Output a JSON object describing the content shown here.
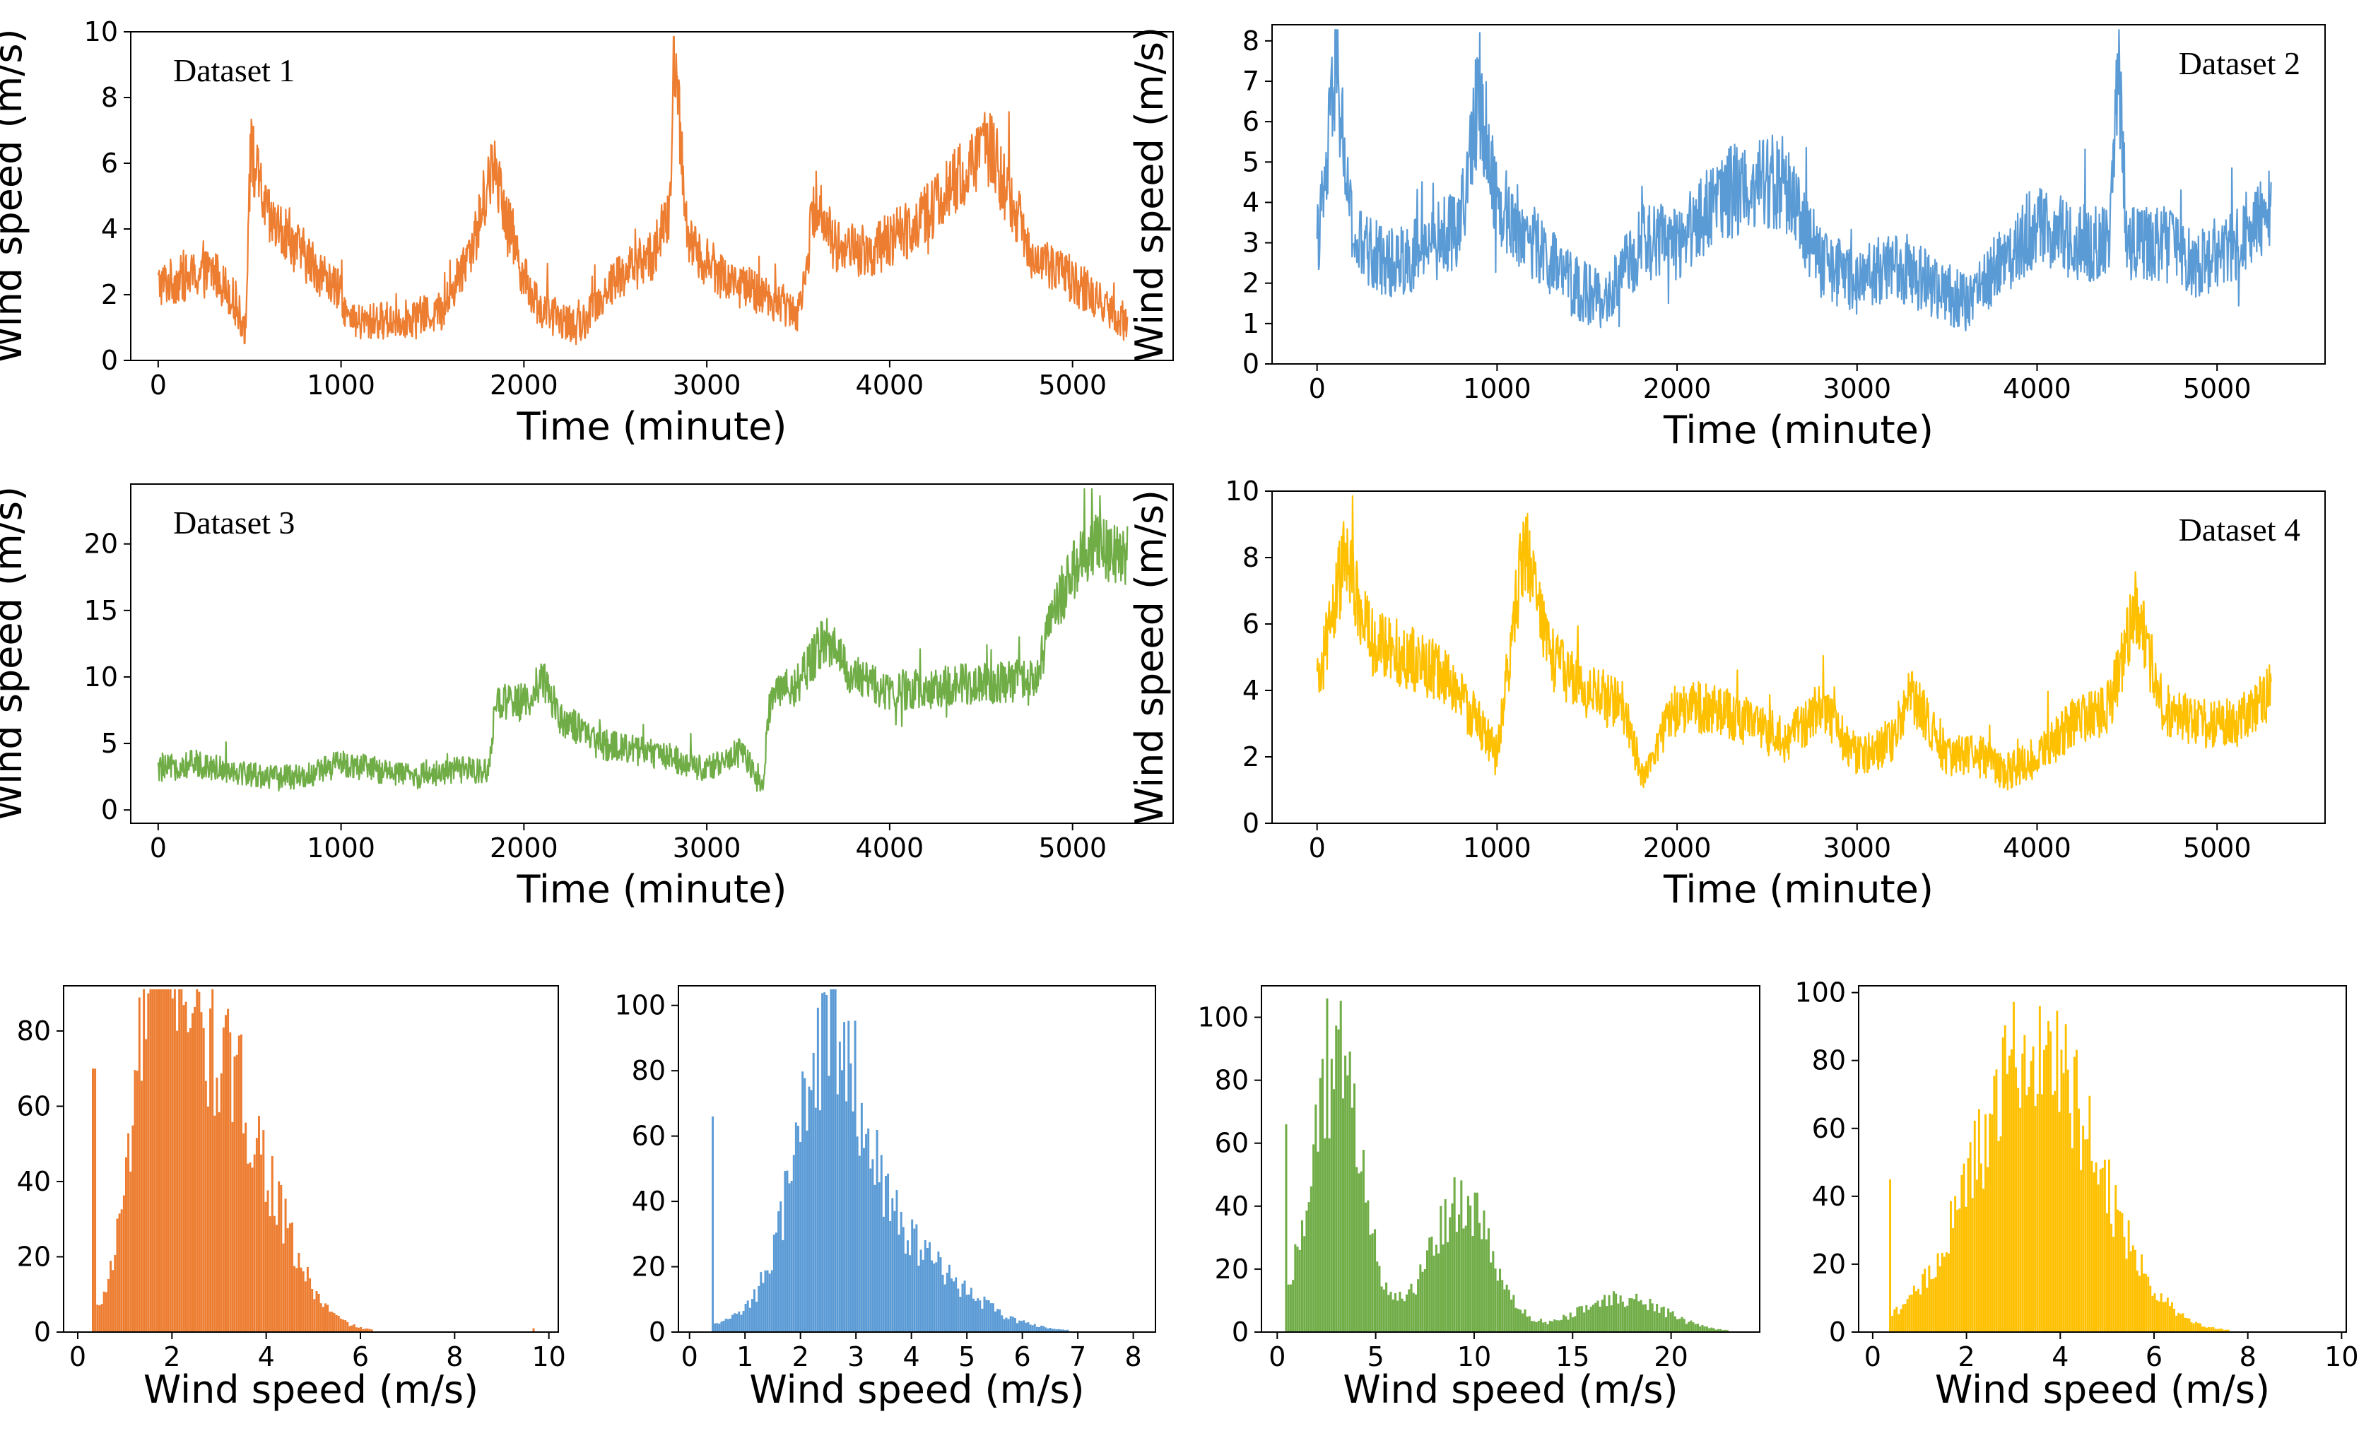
{
  "figure": {
    "description_free": true
  },
  "chart_data": [
    {
      "id": "ts1",
      "type": "line",
      "label": "Dataset 1",
      "color": "#ED7D31",
      "xlabel": "Time (minute)",
      "ylabel": "Wind speed (m/s)",
      "xlim": [
        -150,
        5550
      ],
      "ylim": [
        0,
        10
      ],
      "xticks": [
        0,
        1000,
        2000,
        3000,
        4000,
        5000
      ],
      "yticks": [
        0,
        2,
        4,
        6,
        8,
        10
      ],
      "x": [
        0,
        300,
        400,
        480,
        500,
        600,
        800,
        1000,
        1050,
        1200,
        1400,
        1550,
        1600,
        1750,
        1800,
        1850,
        1900,
        2000,
        2100,
        2300,
        2500,
        2700,
        2800,
        2820,
        2900,
        3100,
        3300,
        3500,
        3600,
        3700,
        3900,
        4100,
        4300,
        4500,
        4550,
        4650,
        4800,
        5000,
        5200,
        5300
      ],
      "y": [
        2.3,
        2.7,
        2.0,
        0.9,
        6.5,
        4.3,
        3.2,
        2.0,
        1.1,
        1.2,
        1.3,
        1.5,
        2.0,
        4.0,
        5.5,
        5.8,
        4.6,
        2.5,
        1.5,
        1.0,
        2.5,
        3.2,
        4.5,
        9.6,
        3.5,
        2.5,
        2.0,
        1.5,
        5.0,
        3.5,
        3.3,
        4.0,
        5.0,
        6.3,
        6.5,
        5.0,
        3.0,
        2.5,
        1.5,
        1.0
      ],
      "noise": 1.1
    },
    {
      "id": "ts2",
      "type": "line",
      "label": "Dataset 2",
      "color": "#5B9BD5",
      "xlabel": "Time (minute)",
      "ylabel": "Wind speed (m/s)",
      "xlim": [
        -250,
        5600
      ],
      "ylim": [
        0,
        8.4
      ],
      "xticks": [
        0,
        1000,
        2000,
        3000,
        4000,
        5000
      ],
      "yticks": [
        0,
        1,
        2,
        3,
        4,
        5,
        6,
        7,
        8
      ],
      "x": [
        0,
        50,
        100,
        200,
        400,
        600,
        800,
        900,
        1000,
        1200,
        1400,
        1600,
        1800,
        2000,
        2200,
        2400,
        2600,
        2800,
        3000,
        3200,
        3400,
        3600,
        3800,
        4000,
        4200,
        4400,
        4450,
        4500,
        4700,
        4900,
        5100,
        5300
      ],
      "y": [
        3.0,
        4.5,
        7.5,
        3.0,
        2.5,
        2.8,
        3.5,
        6.8,
        4.0,
        3.0,
        2.0,
        1.5,
        3.0,
        3.0,
        4.0,
        4.5,
        4.5,
        2.5,
        2.0,
        2.5,
        2.0,
        1.5,
        2.5,
        3.5,
        3.0,
        3.0,
        7.5,
        3.0,
        3.0,
        2.5,
        3.0,
        4.0
      ],
      "noise": 1.2
    },
    {
      "id": "ts3",
      "type": "line",
      "label": "Dataset 3",
      "color": "#70AD47",
      "xlabel": "Time (minute)",
      "ylabel": "Wind speed (m/s)",
      "xlim": [
        -150,
        5550
      ],
      "ylim": [
        -1,
        24.5
      ],
      "xticks": [
        0,
        1000,
        2000,
        3000,
        4000,
        5000
      ],
      "yticks": [
        0,
        5,
        10,
        15,
        20
      ],
      "x": [
        0,
        200,
        400,
        600,
        800,
        1000,
        1200,
        1400,
        1600,
        1800,
        1850,
        2000,
        2100,
        2200,
        2400,
        2600,
        2800,
        3000,
        3200,
        3300,
        3350,
        3500,
        3650,
        3800,
        4000,
        4200,
        4400,
        4600,
        4800,
        4900,
        5000,
        5100,
        5300
      ],
      "y": [
        3.0,
        3.5,
        3.0,
        2.5,
        2.5,
        3.5,
        3.0,
        2.5,
        3.0,
        3.0,
        8.0,
        8.0,
        10.0,
        7.0,
        5.0,
        4.5,
        4.0,
        3.0,
        4.5,
        1.5,
        8.5,
        9.5,
        13.0,
        10.0,
        9.0,
        9.0,
        9.5,
        9.5,
        10.0,
        15.0,
        18.0,
        20.0,
        19.0
      ],
      "noise": 1.8
    },
    {
      "id": "ts4",
      "type": "line",
      "label": "Dataset 4",
      "color": "#FFC000",
      "xlabel": "Time (minute)",
      "ylabel": "Wind speed (m/s)",
      "xlim": [
        -250,
        5600
      ],
      "ylim": [
        0,
        10
      ],
      "xticks": [
        0,
        1000,
        2000,
        3000,
        4000,
        5000
      ],
      "yticks": [
        0,
        2,
        4,
        6,
        8,
        10
      ],
      "x": [
        0,
        150,
        300,
        500,
        700,
        900,
        1000,
        1150,
        1300,
        1500,
        1700,
        1800,
        2000,
        2200,
        2400,
        2600,
        2800,
        3000,
        3200,
        3300,
        3500,
        3700,
        3800,
        4000,
        4200,
        4400,
        4550,
        4700,
        4900,
        5100,
        5300
      ],
      "y": [
        4.0,
        8.0,
        5.5,
        5.0,
        4.5,
        3.0,
        2.0,
        8.5,
        5.0,
        4.0,
        3.5,
        1.5,
        3.5,
        3.5,
        3.0,
        2.5,
        3.5,
        2.0,
        2.5,
        4.0,
        2.0,
        2.0,
        1.5,
        2.0,
        3.0,
        3.5,
        6.5,
        3.5,
        3.0,
        3.0,
        4.0
      ],
      "noise": 1.0
    },
    {
      "id": "h1",
      "type": "bar",
      "color": "#ED7D31",
      "xlabel": "Wind speed (m/s)",
      "ylabel": "",
      "xlim": [
        -0.3,
        10.2
      ],
      "ylim": [
        0,
        92
      ],
      "xticks": [
        0,
        2,
        4,
        6,
        8,
        10
      ],
      "yticks": [
        0,
        20,
        40,
        60,
        80
      ],
      "bins": [
        0.3,
        9.7
      ],
      "nbins": 200,
      "components": [
        {
          "w": 78,
          "mu": 1.7,
          "sd": 0.5
        },
        {
          "w": 72,
          "mu": 3.0,
          "sd": 1.05
        }
      ],
      "spikes": [
        {
          "x": 0.35,
          "v": 70
        },
        {
          "x": 9.7,
          "v": 1
        }
      ],
      "peak_bin": {
        "x": 1.5,
        "v": 90
      }
    },
    {
      "id": "h2",
      "type": "bar",
      "color": "#5B9BD5",
      "xlabel": "Wind speed (m/s)",
      "ylabel": "",
      "xlim": [
        -0.2,
        8.4
      ],
      "ylim": [
        0,
        106
      ],
      "xticks": [
        0,
        1,
        2,
        3,
        4,
        5,
        6,
        7,
        8
      ],
      "yticks": [
        0,
        20,
        40,
        60,
        80,
        100
      ],
      "bins": [
        0.4,
        8.3
      ],
      "nbins": 200,
      "components": [
        {
          "w": 70,
          "mu": 2.5,
          "sd": 0.55
        },
        {
          "w": 33,
          "mu": 3.3,
          "sd": 1.25
        }
      ],
      "spikes": [
        {
          "x": 0.42,
          "v": 66
        }
      ],
      "peak_bin": {
        "x": 2.45,
        "v": 104
      }
    },
    {
      "id": "h3",
      "type": "bar",
      "color": "#70AD47",
      "xlabel": "Wind speed (m/s)",
      "ylabel": "",
      "xlim": [
        -0.8,
        24.5
      ],
      "ylim": [
        0,
        110
      ],
      "xticks": [
        0,
        5,
        10,
        15,
        20
      ],
      "yticks": [
        0,
        20,
        40,
        60,
        80,
        100
      ],
      "bins": [
        0.4,
        23.5
      ],
      "nbins": 200,
      "components": [
        {
          "w": 88,
          "mu": 3.0,
          "sd": 1.3
        },
        {
          "w": 42,
          "mu": 9.3,
          "sd": 1.6
        },
        {
          "w": 11,
          "mu": 17.5,
          "sd": 2.2
        }
      ],
      "spikes": [
        {
          "x": 0.45,
          "v": 66
        }
      ],
      "peak_bin": {
        "x": 2.5,
        "v": 106
      }
    },
    {
      "id": "h4",
      "type": "bar",
      "color": "#FFC000",
      "xlabel": "Wind speed (m/s)",
      "ylabel": "",
      "xlim": [
        -0.3,
        10.1
      ],
      "ylim": [
        0,
        102
      ],
      "xticks": [
        0,
        2,
        4,
        6,
        8,
        10
      ],
      "yticks": [
        0,
        20,
        40,
        60,
        80,
        100
      ],
      "bins": [
        0.35,
        9.6
      ],
      "nbins": 200,
      "components": [
        {
          "w": 86,
          "mu": 3.5,
          "sd": 1.3
        }
      ],
      "spikes": [
        {
          "x": 0.38,
          "v": 45
        }
      ],
      "peak_bin": {
        "x": 3.55,
        "v": 96
      }
    }
  ]
}
